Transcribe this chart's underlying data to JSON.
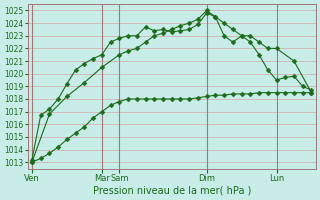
{
  "bg_color": "#c8ece8",
  "line_color": "#1a6b1a",
  "grid_color": "#d4a8a8",
  "grid_dark_color": "#a07878",
  "xlabel": "Pression niveau de la mer( hPa )",
  "ylim": [
    1012.5,
    1025.5
  ],
  "yticks": [
    1013,
    1014,
    1015,
    1016,
    1017,
    1018,
    1019,
    1020,
    1021,
    1022,
    1023,
    1024,
    1025
  ],
  "n_xpoints": 33,
  "x_day_positions": [
    0,
    8,
    10,
    20,
    28
  ],
  "x_day_labels": [
    "Ven",
    "Mar",
    "Sam",
    "Dim",
    "Lun"
  ],
  "vline_positions": [
    0,
    8,
    10,
    20,
    28
  ],
  "line1_x": [
    0,
    1,
    2,
    3,
    4,
    5,
    6,
    7,
    8,
    9,
    10,
    11,
    12,
    13,
    14,
    15,
    16,
    17,
    18,
    19,
    20,
    21,
    22,
    23,
    24,
    25,
    26,
    27,
    28,
    29,
    30,
    31,
    32
  ],
  "line1_y": [
    1013.0,
    1013.3,
    1013.7,
    1014.2,
    1014.8,
    1015.3,
    1015.8,
    1016.5,
    1017.0,
    1017.5,
    1017.8,
    1018.0,
    1018.0,
    1018.0,
    1018.0,
    1018.0,
    1018.0,
    1018.0,
    1018.0,
    1018.1,
    1018.2,
    1018.3,
    1018.3,
    1018.4,
    1018.4,
    1018.4,
    1018.5,
    1018.5,
    1018.5,
    1018.5,
    1018.5,
    1018.5,
    1018.5
  ],
  "line2_x": [
    0,
    1,
    2,
    3,
    4,
    5,
    6,
    7,
    8,
    9,
    10,
    11,
    12,
    13,
    14,
    15,
    16,
    17,
    18,
    19,
    20,
    21,
    22,
    23,
    24,
    25,
    26,
    27,
    28,
    29,
    30,
    31,
    32
  ],
  "line2_y": [
    1013.2,
    1016.7,
    1017.2,
    1018.0,
    1019.2,
    1020.3,
    1020.8,
    1021.2,
    1021.5,
    1022.5,
    1022.8,
    1023.0,
    1023.0,
    1023.7,
    1023.4,
    1023.5,
    1023.3,
    1023.4,
    1023.5,
    1023.9,
    1024.8,
    1024.5,
    1024.0,
    1023.5,
    1023.0,
    1022.5,
    1021.5,
    1020.3,
    1019.5,
    1019.7,
    1019.8,
    1019.0,
    1018.7
  ],
  "line3_x": [
    0,
    2,
    4,
    6,
    8,
    10,
    11,
    12,
    13,
    14,
    15,
    16,
    17,
    18,
    19,
    20,
    21,
    22,
    23,
    24,
    25,
    26,
    27,
    28,
    30,
    32
  ],
  "line3_y": [
    1013.0,
    1016.8,
    1018.2,
    1019.3,
    1020.5,
    1021.5,
    1021.8,
    1022.0,
    1022.5,
    1023.0,
    1023.2,
    1023.5,
    1023.8,
    1024.0,
    1024.3,
    1025.0,
    1024.5,
    1023.0,
    1022.5,
    1023.0,
    1023.0,
    1022.5,
    1022.0,
    1022.0,
    1021.0,
    1018.5
  ]
}
